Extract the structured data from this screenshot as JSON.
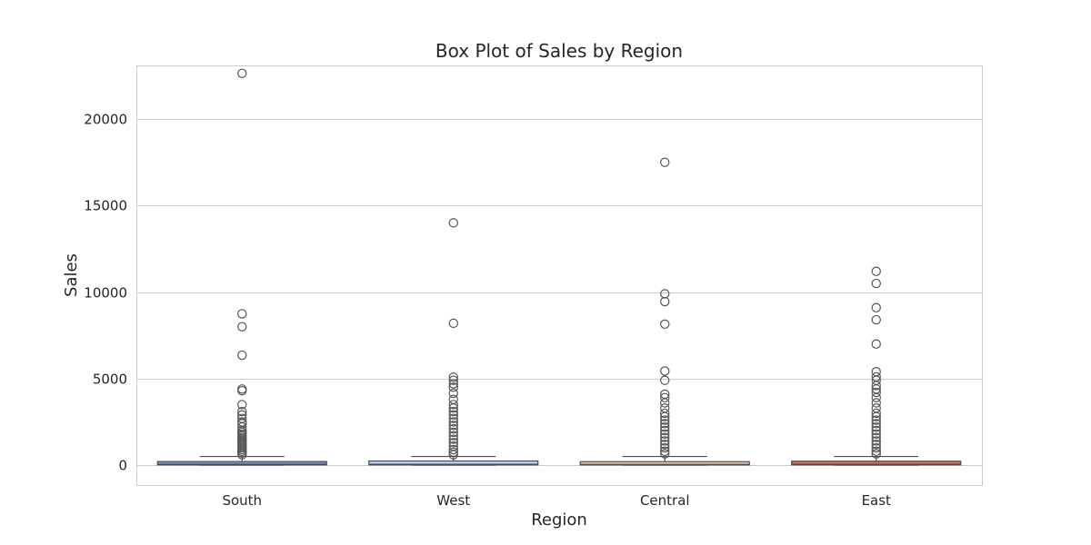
{
  "chart_data": {
    "type": "box",
    "title": "Box Plot of Sales by Region",
    "xlabel": "Region",
    "ylabel": "Sales",
    "ylim": [
      -1150,
      23100
    ],
    "yticks": [
      0,
      5000,
      10000,
      15000,
      20000
    ],
    "grid": true,
    "categories": [
      "South",
      "West",
      "Central",
      "East"
    ],
    "colors": [
      "#6f92e6",
      "#bcd3f5",
      "#f2c7b0",
      "#dd6b57"
    ],
    "series": [
      {
        "category": "South",
        "whislo": 1,
        "q1": 15,
        "median": 50,
        "q3": 210,
        "whishi": 500,
        "fliers": [
          22638,
          8750,
          8000,
          6354,
          4400,
          4300,
          3500,
          3100,
          2900,
          2700,
          2500,
          2400,
          2200,
          2000,
          1900,
          1800,
          1700,
          1600,
          1500,
          1400,
          1300,
          1200,
          1100,
          1000,
          900,
          800,
          700,
          600
        ]
      },
      {
        "category": "West",
        "whislo": 1,
        "q1": 17,
        "median": 55,
        "q3": 240,
        "whishi": 500,
        "fliers": [
          14000,
          8200,
          5083,
          4900,
          4700,
          4500,
          4150,
          3800,
          3500,
          3300,
          3100,
          2900,
          2700,
          2500,
          2300,
          2100,
          1900,
          1700,
          1500,
          1300,
          1100,
          900,
          750,
          600
        ]
      },
      {
        "category": "Central",
        "whislo": 1,
        "q1": 14,
        "median": 45,
        "q3": 200,
        "whishi": 500,
        "fliers": [
          17500,
          9900,
          9450,
          8150,
          5440,
          4900,
          4100,
          3900,
          3600,
          3300,
          3000,
          2800,
          2600,
          2400,
          2200,
          2000,
          1800,
          1600,
          1400,
          1200,
          1000,
          800,
          650
        ]
      },
      {
        "category": "East",
        "whislo": 1,
        "q1": 16,
        "median": 55,
        "q3": 230,
        "whishi": 500,
        "fliers": [
          11200,
          10500,
          9100,
          8400,
          7000,
          5400,
          5100,
          4900,
          4600,
          4400,
          4200,
          3900,
          3600,
          3300,
          3000,
          2800,
          2600,
          2400,
          2200,
          2000,
          1800,
          1600,
          1400,
          1200,
          1000,
          800,
          650
        ]
      }
    ]
  }
}
